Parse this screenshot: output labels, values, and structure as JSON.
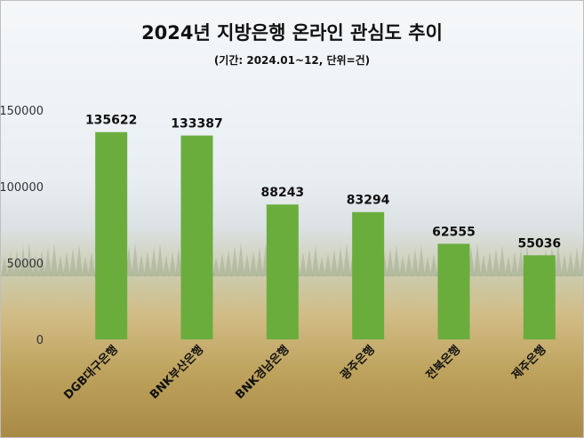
{
  "chart_data": {
    "type": "bar",
    "title": "2024년 지방은행 온라인 관심도 추이",
    "subtitle": "(기간: 2024.01~12, 단위=건)",
    "categories": [
      "DGB대구은행",
      "BNK부산은행",
      "BNK경남은행",
      "광주은행",
      "전북은행",
      "제주은행"
    ],
    "values": [
      135622,
      133387,
      88243,
      83294,
      62555,
      55036
    ],
    "ylim": [
      0,
      150000
    ],
    "yticks": [
      0,
      50000,
      100000,
      150000
    ],
    "bar_color": "#6aad3d",
    "grid": false,
    "data_labels": true
  }
}
